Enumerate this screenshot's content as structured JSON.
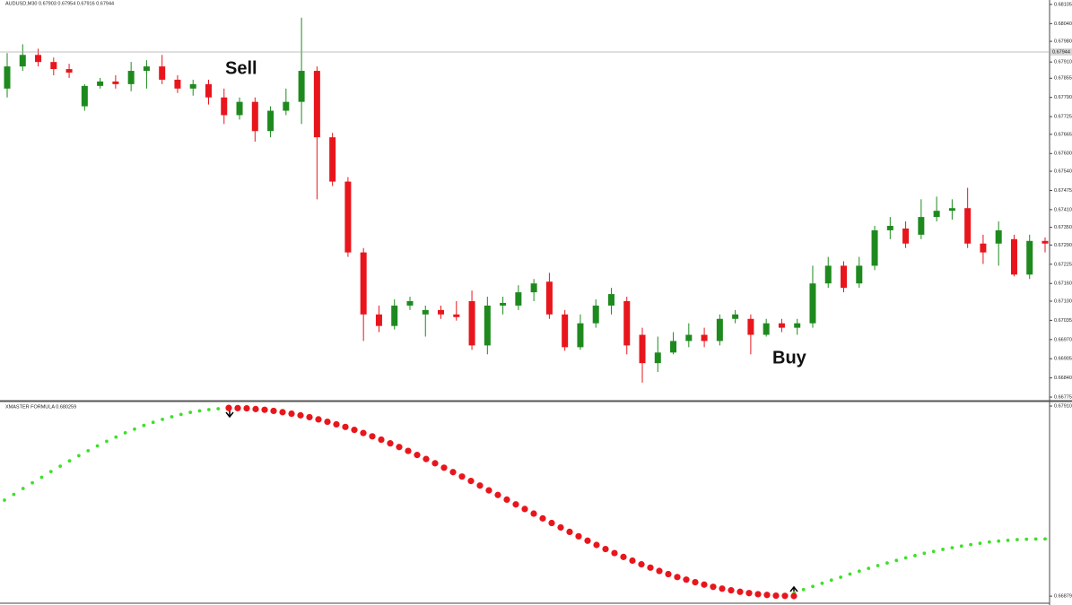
{
  "chart_data": [
    {
      "type": "candlestick",
      "title": "AUDUSD,M30 0.67903 0.67954 0.67916 0.67944",
      "annotations": [
        "Sell",
        "Buy"
      ],
      "up_color": "#1e8a1e",
      "down_color": "#e8161c",
      "current_price": 0.67944,
      "ylim": [
        0.66763,
        0.6812
      ],
      "yticks": [
        0.68105,
        {
          "value": 0.6804,
          "label": "0.68040"
        },
        {
          "value": 0.6798,
          "label": "0.67980"
        },
        {
          "value": 0.6791,
          "label": "0.67910"
        },
        0.67855,
        {
          "value": 0.6779,
          "label": "0.67790"
        },
        0.67725,
        0.67665,
        {
          "value": 0.676,
          "label": "0.67600"
        },
        {
          "value": 0.6754,
          "label": "0.67540"
        },
        0.67475,
        {
          "value": 0.6741,
          "label": "0.67410"
        },
        {
          "value": 0.6735,
          "label": "0.67350"
        },
        {
          "value": 0.6729,
          "label": "0.67290"
        },
        0.67225,
        {
          "value": 0.6716,
          "label": "0.67160"
        },
        {
          "value": 0.671,
          "label": "0.67100"
        },
        0.67035,
        {
          "value": 0.6697,
          "label": "0.66970"
        },
        0.66905,
        {
          "value": 0.6684,
          "label": "0.66840"
        },
        0.66775
      ],
      "open": [
        0.6782,
        0.67895,
        0.67934,
        0.6791,
        0.67886,
        0.6776,
        0.67829,
        0.67844,
        0.67835,
        0.6788,
        0.67895,
        0.6785,
        0.6782,
        0.67835,
        0.6779,
        0.6773,
        0.67775,
        0.67676,
        0.67745,
        0.67775,
        0.6788,
        0.67655,
        0.67505,
        0.67265,
        0.67055,
        0.67016,
        0.67085,
        0.67055,
        0.6707,
        0.67055,
        0.671,
        0.6695,
        0.67085,
        0.67085,
        0.6713,
        0.67166,
        0.67055,
        0.66944,
        0.67025,
        0.67085,
        0.671,
        0.66986,
        0.6689,
        0.66926,
        0.66965,
        0.66986,
        0.66965,
        0.6704,
        0.6704,
        0.66986,
        0.67025,
        0.6701,
        0.67025,
        0.6716,
        0.6722,
        0.6716,
        0.6722,
        0.6734,
        0.67346,
        0.67325,
        0.67385,
        0.67406,
        0.67415,
        0.67295,
        0.67295,
        0.6731,
        0.6719,
        0.67304
      ],
      "high": [
        0.6794,
        0.6797,
        0.67955,
        0.67925,
        0.67904,
        0.67835,
        0.67856,
        0.67865,
        0.6791,
        0.67916,
        0.67934,
        0.67865,
        0.6785,
        0.6785,
        0.6782,
        0.6779,
        0.6779,
        0.6776,
        0.6782,
        0.6806,
        0.67895,
        0.6767,
        0.6752,
        0.6728,
        0.67085,
        0.67106,
        0.67115,
        0.67085,
        0.67085,
        0.671,
        0.67136,
        0.67115,
        0.67115,
        0.67154,
        0.67175,
        0.67196,
        0.6707,
        0.67055,
        0.67106,
        0.67145,
        0.67115,
        0.6701,
        0.6698,
        0.66995,
        0.67025,
        0.6701,
        0.67055,
        0.6707,
        0.67055,
        0.6704,
        0.6704,
        0.6704,
        0.6722,
        0.6725,
        0.67235,
        0.6725,
        0.67355,
        0.67385,
        0.6737,
        0.67445,
        0.67454,
        0.67445,
        0.67484,
        0.67325,
        0.6737,
        0.67325,
        0.67325,
        0.67316
      ],
      "low": [
        0.6779,
        0.6788,
        0.67895,
        0.67865,
        0.67856,
        0.67745,
        0.6782,
        0.6782,
        0.67811,
        0.6782,
        0.67835,
        0.67805,
        0.67796,
        0.67766,
        0.677,
        0.67715,
        0.6764,
        0.67655,
        0.6773,
        0.677,
        0.67445,
        0.6749,
        0.6725,
        0.66965,
        0.66995,
        0.67004,
        0.6707,
        0.6698,
        0.6704,
        0.67034,
        0.66935,
        0.6692,
        0.67055,
        0.6707,
        0.671,
        0.6704,
        0.66932,
        0.66935,
        0.6701,
        0.67055,
        0.6692,
        0.66824,
        0.6686,
        0.6692,
        0.66944,
        0.66944,
        0.6695,
        0.67025,
        0.6692,
        0.6698,
        0.66995,
        0.66986,
        0.6701,
        0.67145,
        0.6713,
        0.67145,
        0.67205,
        0.6731,
        0.6728,
        0.6731,
        0.6737,
        0.67376,
        0.6728,
        0.67226,
        0.6722,
        0.67184,
        0.67175,
        0.67265
      ],
      "close": [
        0.67895,
        0.67934,
        0.6791,
        0.67886,
        0.67874,
        0.67829,
        0.67844,
        0.67835,
        0.6788,
        0.67895,
        0.6785,
        0.6782,
        0.67835,
        0.6779,
        0.6773,
        0.67775,
        0.67676,
        0.67745,
        0.67775,
        0.6788,
        0.67655,
        0.67505,
        0.67265,
        0.67055,
        0.67016,
        0.67085,
        0.671,
        0.6707,
        0.67055,
        0.67046,
        0.6695,
        0.67085,
        0.67094,
        0.6713,
        0.6716,
        0.67055,
        0.66944,
        0.67025,
        0.67085,
        0.67124,
        0.6695,
        0.6689,
        0.66926,
        0.66965,
        0.66986,
        0.66965,
        0.6704,
        0.67055,
        0.66986,
        0.67025,
        0.6701,
        0.67025,
        0.6716,
        0.6722,
        0.67145,
        0.6722,
        0.6734,
        0.67355,
        0.67295,
        0.67385,
        0.67406,
        0.67415,
        0.67295,
        0.67265,
        0.6734,
        0.6719,
        0.67304,
        0.67295
      ]
    },
    {
      "type": "dots",
      "title": "XMASTER FORMULA 0.680259",
      "ylim": [
        0.66846,
        0.67925
      ],
      "yticks": [
        0.679103,
        0.668795
      ],
      "series": [
        {
          "color": "#3ee02a",
          "values": [
            0.674,
            0.67431,
            0.67463,
            0.67494,
            0.67524,
            0.67555,
            0.67584,
            0.67613,
            0.67641,
            0.67668,
            0.67694,
            0.67719,
            0.67742,
            0.67765,
            0.67785,
            0.67805,
            0.67822,
            0.67838,
            0.67852,
            0.67865,
            0.67876,
            0.67884,
            0.67891,
            0.67896,
            0.67899,
            null,
            null,
            null,
            null,
            null,
            null,
            null,
            null,
            null,
            null,
            null,
            null,
            null,
            null,
            null,
            null,
            null,
            null,
            null,
            null,
            null,
            null,
            null,
            null,
            null,
            null,
            null,
            null,
            null,
            null,
            null,
            null,
            null,
            null,
            null,
            null,
            null,
            null,
            null,
            null,
            null,
            null,
            null,
            null,
            null,
            null,
            null,
            null,
            null,
            null,
            null,
            null,
            null,
            null,
            null,
            null,
            null,
            null,
            null,
            null,
            0.66897,
            0.66915,
            0.66932,
            0.66949,
            0.66966,
            0.66982,
            0.66999,
            0.67015,
            0.6703,
            0.67045,
            0.67059,
            0.67073,
            0.67087,
            0.67099,
            0.67112,
            0.67122,
            0.67133,
            0.67142,
            0.67151,
            0.67159,
            0.67166,
            0.67173,
            0.67178,
            0.67182,
            0.67186,
            0.67188,
            0.67189,
            0.6719
          ]
        },
        {
          "color": "#e8161c",
          "values": [
            null,
            null,
            null,
            null,
            null,
            null,
            null,
            null,
            null,
            null,
            null,
            null,
            null,
            null,
            null,
            null,
            null,
            null,
            null,
            null,
            null,
            null,
            null,
            null,
            null,
            0.679,
            0.67899,
            0.67898,
            0.67894,
            0.6789,
            0.67884,
            0.67877,
            0.67869,
            0.6786,
            0.6785,
            0.67838,
            0.67825,
            0.67811,
            0.67797,
            0.67781,
            0.67764,
            0.67746,
            0.67728,
            0.67708,
            0.67688,
            0.67667,
            0.67645,
            0.67623,
            0.676,
            0.67576,
            0.67552,
            0.67528,
            0.67504,
            0.67479,
            0.67453,
            0.67428,
            0.67403,
            0.67377,
            0.67352,
            0.67327,
            0.67301,
            0.67276,
            0.67252,
            0.67228,
            0.67204,
            0.6718,
            0.67157,
            0.67135,
            0.67113,
            0.67092,
            0.67072,
            0.67052,
            0.67034,
            0.67016,
            0.66999,
            0.66983,
            0.66969,
            0.66955,
            0.66942,
            0.6693,
            0.6692,
            0.66911,
            0.66903,
            0.66896,
            0.6689,
            0.66886,
            0.66882,
            0.66881,
            0.6688,
            null,
            null,
            null,
            null,
            null,
            null,
            null,
            null,
            null,
            null,
            null,
            null,
            null,
            null,
            null,
            null,
            null,
            null,
            null,
            null,
            null,
            null,
            null,
            null,
            null,
            null,
            null,
            null
          ]
        }
      ]
    }
  ]
}
